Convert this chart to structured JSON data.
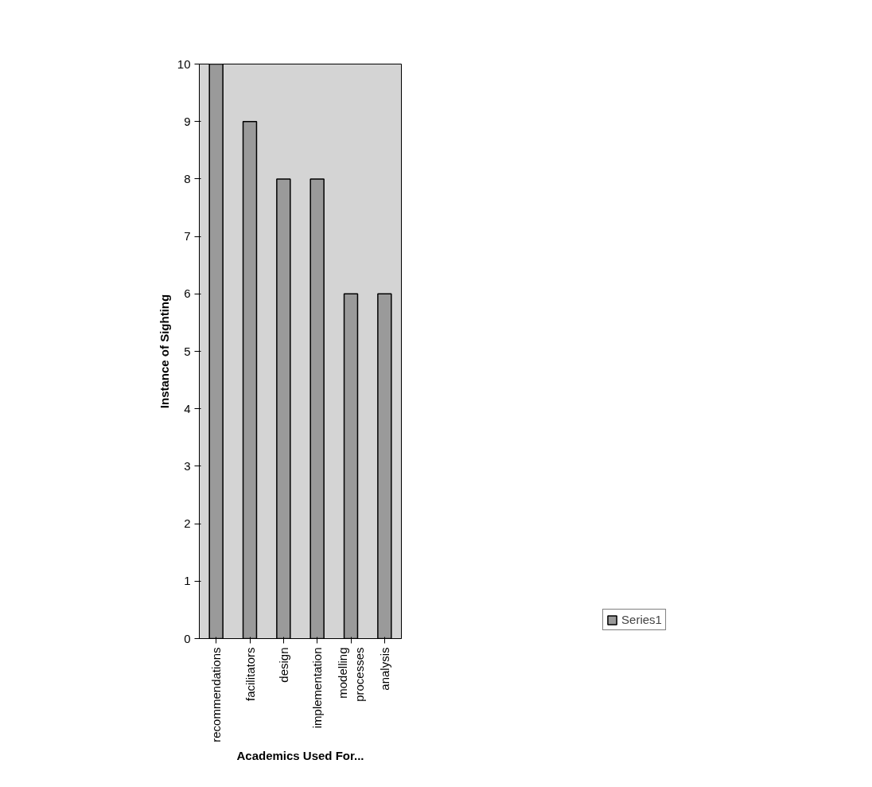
{
  "chart_data": {
    "type": "bar",
    "xlabel": "Academics Used For...",
    "ylabel": "Instance of Sighting",
    "categories": [
      "recommendations",
      "facilitators",
      "design",
      "implementation",
      "modelling processes",
      "analysis"
    ],
    "series": [
      {
        "name": "Series1",
        "color": "#9a9a9a",
        "values": [
          10,
          9,
          8,
          8,
          6,
          6
        ]
      }
    ],
    "ylim": [
      0,
      10
    ],
    "yticks": [
      0,
      1,
      2,
      3,
      4,
      5,
      6,
      7,
      8,
      9,
      10
    ],
    "grid": false,
    "legend": "right"
  }
}
